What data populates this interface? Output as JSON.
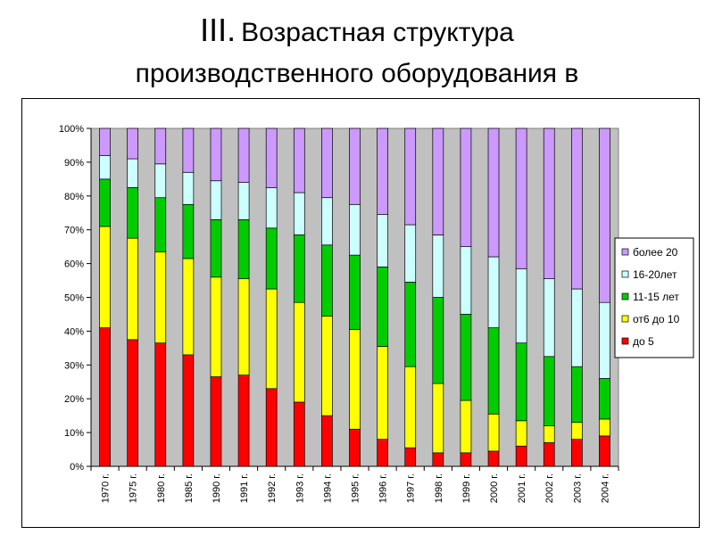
{
  "title": {
    "roman": "III.",
    "line1": "Возрастная структура",
    "line2": "производственного оборудования в"
  },
  "chart_data": {
    "type": "bar",
    "stacked": true,
    "categories": [
      "1970 г.",
      "1975 г.",
      "1980 г.",
      "1985 г.",
      "1990 г.",
      "1991 г.",
      "1992 г.",
      "1993 г.",
      "1994 г.",
      "1995 г.",
      "1996 г.",
      "1997 г.",
      "1998 г.",
      "1999 г.",
      "2000 г.",
      "2001 г.",
      "2002 г.",
      "2003 г.",
      "2004 г."
    ],
    "y_ticks": [
      "0%",
      "10%",
      "20%",
      "30%",
      "40%",
      "50%",
      "60%",
      "70%",
      "80%",
      "90%",
      "100%"
    ],
    "ylim": [
      0,
      100
    ],
    "grid": false,
    "legend_position": "right",
    "series": [
      {
        "name": "до 5",
        "color": "#ff0000",
        "values": [
          41,
          37.5,
          36.5,
          33,
          26.5,
          27,
          23,
          19,
          15,
          11,
          8,
          5.5,
          4,
          4,
          4.5,
          6,
          7,
          8,
          9
        ]
      },
      {
        "name": "от6 до 10",
        "color": "#ffff00",
        "values": [
          30,
          30,
          27,
          28.5,
          29.5,
          28.5,
          29.5,
          29.5,
          29.5,
          29.5,
          27.5,
          24,
          20.5,
          15.5,
          11,
          7.5,
          5,
          5,
          5
        ]
      },
      {
        "name": "11-15 лет",
        "color": "#00cc00",
        "values": [
          14,
          15,
          16,
          16,
          17,
          17.5,
          18,
          20,
          21,
          22,
          23.5,
          25,
          25.5,
          25.5,
          25.5,
          23,
          20.5,
          16.5,
          12
        ]
      },
      {
        "name": "16-20лет",
        "color": "#ccffff",
        "values": [
          7,
          8.5,
          10,
          9.5,
          11.5,
          11,
          12,
          12.5,
          14,
          15,
          15.5,
          17,
          18.5,
          20,
          21,
          22,
          23,
          23,
          22.5
        ]
      },
      {
        "name": "более 20",
        "color": "#cc99ff",
        "values": [
          8,
          9,
          10.5,
          13,
          15.5,
          16,
          17.5,
          19,
          20.5,
          22.5,
          25.5,
          28.5,
          31.5,
          35,
          38,
          41.5,
          44.5,
          47.5,
          51.5
        ]
      }
    ],
    "legend_order": [
      "более 20",
      "16-20лет",
      "11-15 лет",
      "от6 до 10",
      "до 5"
    ],
    "colors": {
      "plot_area": "#c0c0c0",
      "bar_outline": "#000000"
    }
  }
}
